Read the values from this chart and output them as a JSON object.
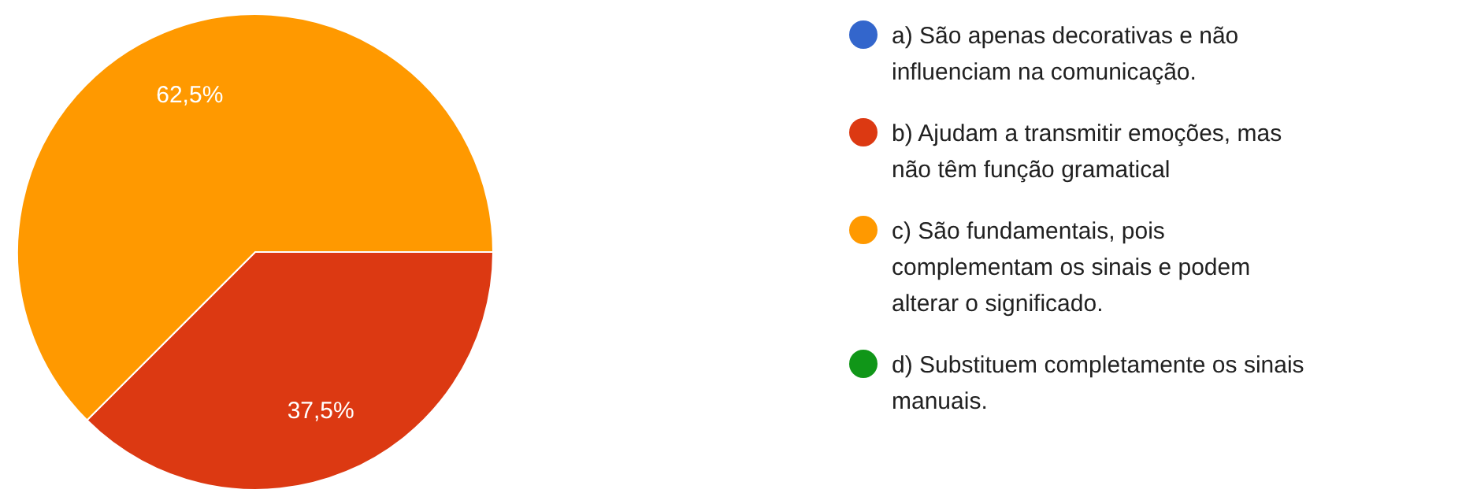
{
  "chart_data": {
    "type": "pie",
    "categories": [
      "a) São apenas decorativas e não influenciam na comunicação.",
      "b) Ajudam a transmitir emoções, mas não têm função gramatical",
      "c) São fundamentais, pois complementam os sinais e podem alterar o significado.",
      "d) Substituem completamente os sinais manuais."
    ],
    "values": [
      0,
      37.5,
      62.5,
      0
    ],
    "colors": [
      "#3366cc",
      "#dc3912",
      "#ff9900",
      "#109618"
    ],
    "value_labels": [
      null,
      "37,5%",
      "62,5%",
      null
    ],
    "legend": "right"
  }
}
